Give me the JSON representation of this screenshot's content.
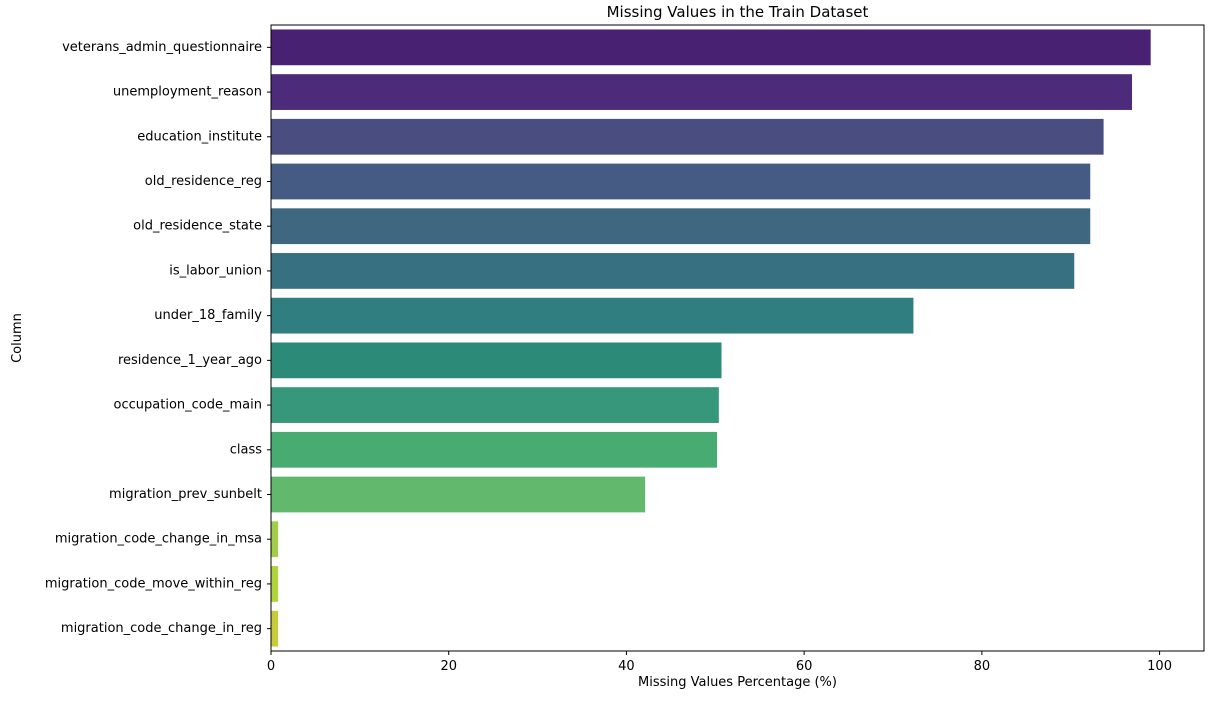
{
  "chart_data": {
    "type": "bar",
    "orientation": "horizontal",
    "title": "Missing Values in the Train Dataset",
    "xlabel": "Missing Values Percentage (%)",
    "ylabel": "Column",
    "xlim": [
      0,
      105
    ],
    "xticks": [
      "0",
      "20",
      "40",
      "60",
      "80",
      "100"
    ],
    "xtick_values": [
      0,
      20,
      40,
      60,
      80,
      100
    ],
    "grid": false,
    "categories": [
      "veterans_admin_questionnaire",
      "unemployment_reason",
      "education_institute",
      "old_residence_reg",
      "old_residence_state",
      "is_labor_union",
      "under_18_family",
      "residence_1_year_ago",
      "occupation_code_main",
      "class",
      "migration_prev_sunbelt",
      "migration_code_change_in_msa",
      "migration_code_move_within_reg",
      "migration_code_change_in_reg"
    ],
    "values": [
      99.0,
      96.9,
      93.7,
      92.2,
      92.2,
      90.4,
      72.3,
      50.7,
      50.4,
      50.2,
      42.1,
      0.8,
      0.8,
      0.8
    ],
    "colors": [
      "#482173",
      "#4c2c7a",
      "#4a4d80",
      "#455b83",
      "#3f6880",
      "#377181",
      "#317e81",
      "#2c8a79",
      "#37977a",
      "#48ac72",
      "#62b86d",
      "#a1cd48",
      "#b0d23b",
      "#c7cc3a"
    ],
    "palette": "viridis"
  }
}
